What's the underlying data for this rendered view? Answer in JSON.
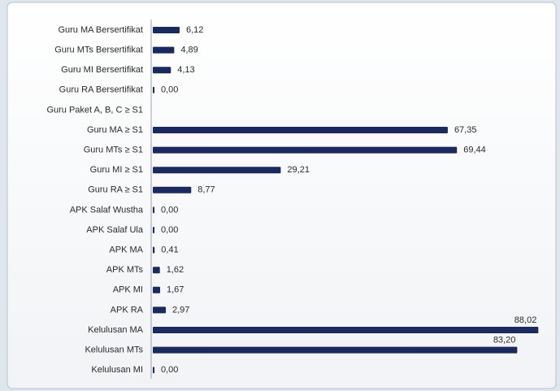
{
  "chart_data": {
    "type": "barh",
    "categories": [
      "Guru MA Bersertifikat",
      "Guru MTs Bersertifikat",
      "Guru MI Bersertifikat",
      "Guru RA Bersertifikat",
      "Guru Paket A, B, C ≥ S1",
      "Guru MA ≥ S1",
      "Guru MTs ≥ S1",
      "Guru MI ≥ S1",
      "Guru RA ≥ S1",
      "APK Salaf Wustha",
      "APK Salaf Ula",
      "APK MA",
      "APK MTs",
      "APK MI",
      "APK RA",
      "Kelulusan MA",
      "Kelulusan MTs",
      "Kelulusan MI"
    ],
    "values": [
      6.12,
      4.89,
      4.13,
      0,
      null,
      67.35,
      69.44,
      29.21,
      8.77,
      0,
      0,
      0.41,
      1.62,
      1.67,
      2.97,
      88.02,
      83.2,
      0
    ],
    "value_labels": [
      "6,12",
      "4,89",
      "4,13",
      "0,00",
      null,
      "67,35",
      "69,44",
      "29,21",
      "8,77",
      "0,00",
      "0,00",
      "0,41",
      "1,62",
      "1,67",
      "2,97",
      "88,02",
      "83,20",
      "0,00"
    ],
    "color": "#1b2a5c",
    "xlim": [
      0,
      90
    ]
  }
}
